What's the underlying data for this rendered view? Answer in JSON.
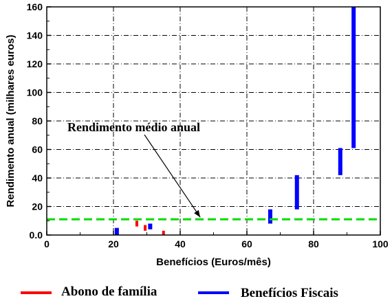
{
  "chart_data": {
    "type": "bar",
    "xlabel": "Benefícios (Euros/mês)",
    "ylabel": "Rendimento anual (milhares euros)",
    "xlim": [
      0,
      100
    ],
    "ylim": [
      0,
      160
    ],
    "x_ticks": [
      0,
      20,
      40,
      60,
      80,
      100
    ],
    "y_ticks": [
      0.0,
      20,
      40,
      60,
      80,
      100,
      120,
      140,
      160
    ],
    "x_tick_labels": [
      "0",
      "20",
      "40",
      "60",
      "80",
      "100"
    ],
    "y_tick_labels": [
      "0.0",
      "20",
      "40",
      "60",
      "80",
      "100",
      "120",
      "140",
      "160"
    ],
    "grid": true,
    "grid_style": "dash-dot",
    "legend_position": "bottom",
    "series": [
      {
        "name": "Abono de família",
        "color": "#ff0000",
        "bars": [
          {
            "x": 27,
            "y_low": 6,
            "y_high": 10
          },
          {
            "x": 29.5,
            "y_low": 3,
            "y_high": 7
          },
          {
            "x": 35,
            "y_low": 0,
            "y_high": 3
          }
        ]
      },
      {
        "name": "Benefícios Fiscais",
        "color": "#0000ff",
        "bars": [
          {
            "x": 21,
            "y_low": 0,
            "y_high": 5
          },
          {
            "x": 31,
            "y_low": 4,
            "y_high": 8
          },
          {
            "x": 67,
            "y_low": 8,
            "y_high": 18
          },
          {
            "x": 75,
            "y_low": 18,
            "y_high": 42
          },
          {
            "x": 88,
            "y_low": 42,
            "y_high": 61
          },
          {
            "x": 92,
            "y_low": 61,
            "y_high": 160
          }
        ]
      }
    ],
    "reference_line": {
      "y": 11,
      "color": "#00dd00",
      "style": "dashed"
    },
    "annotation": {
      "text": "Rendimento médio anual",
      "arrow_target": {
        "x": 46,
        "y": 11
      }
    }
  }
}
